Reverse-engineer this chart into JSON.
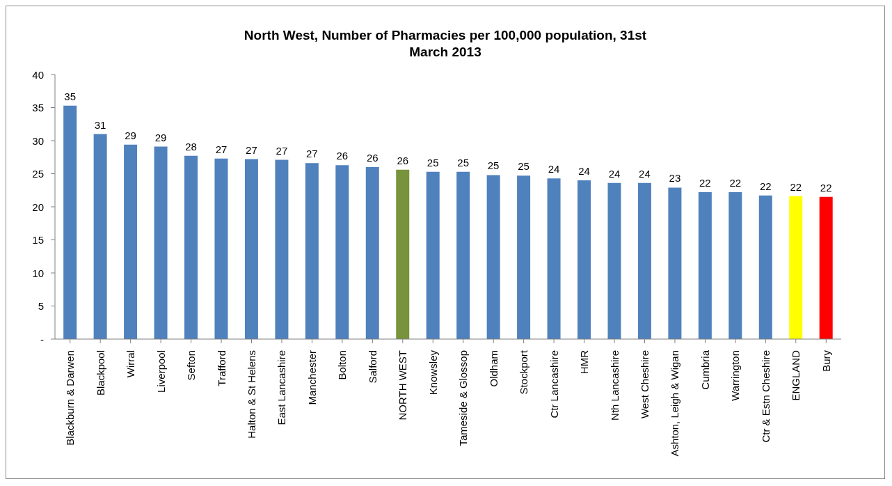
{
  "chart_data": {
    "type": "bar",
    "title": "North West, Number of Pharmacies per 100,000 population, 31st March 2013",
    "categories": [
      "Blackburn & Darwen",
      "Blackpool",
      "Wirral",
      "Liverpool",
      "Sefton",
      "Trafford",
      "Halton & St Helens",
      "East Lancashire",
      "Manchester",
      "Bolton",
      "Salford",
      "NORTH WEST",
      "Knowsley",
      "Tameside & Glossop",
      "Oldham",
      "Stockport",
      "Ctr Lancashire",
      "HMR",
      "Nth Lancashire",
      "West Cheshire",
      "Ashton, Leigh & Wigan",
      "Cumbria",
      "Warrington",
      "Ctr & Estn Cheshire",
      "ENGLAND",
      "Bury"
    ],
    "values": [
      35.3,
      31.0,
      29.4,
      29.1,
      27.7,
      27.3,
      27.2,
      27.1,
      26.6,
      26.3,
      26.0,
      25.6,
      25.3,
      25.3,
      24.8,
      24.7,
      24.3,
      24.0,
      23.6,
      23.6,
      22.9,
      22.2,
      22.2,
      21.7,
      21.6,
      21.5
    ],
    "value_labels": [
      "35",
      "31",
      "29",
      "29",
      "28",
      "27",
      "27",
      "27",
      "27",
      "26",
      "26",
      "26",
      "25",
      "25",
      "25",
      "25",
      "24",
      "24",
      "24",
      "24",
      "23",
      "22",
      "22",
      "22",
      "22",
      "22"
    ],
    "colors": [
      "#4f81bd",
      "#4f81bd",
      "#4f81bd",
      "#4f81bd",
      "#4f81bd",
      "#4f81bd",
      "#4f81bd",
      "#4f81bd",
      "#4f81bd",
      "#4f81bd",
      "#4f81bd",
      "#77933c",
      "#4f81bd",
      "#4f81bd",
      "#4f81bd",
      "#4f81bd",
      "#4f81bd",
      "#4f81bd",
      "#4f81bd",
      "#4f81bd",
      "#4f81bd",
      "#4f81bd",
      "#4f81bd",
      "#4f81bd",
      "#ffff00",
      "#ff0000"
    ],
    "ylim": [
      0,
      40
    ],
    "yticks": [
      {
        "value": 0,
        "label": "-"
      },
      5,
      10,
      15,
      20,
      25,
      30,
      35,
      40
    ],
    "grid": false
  }
}
